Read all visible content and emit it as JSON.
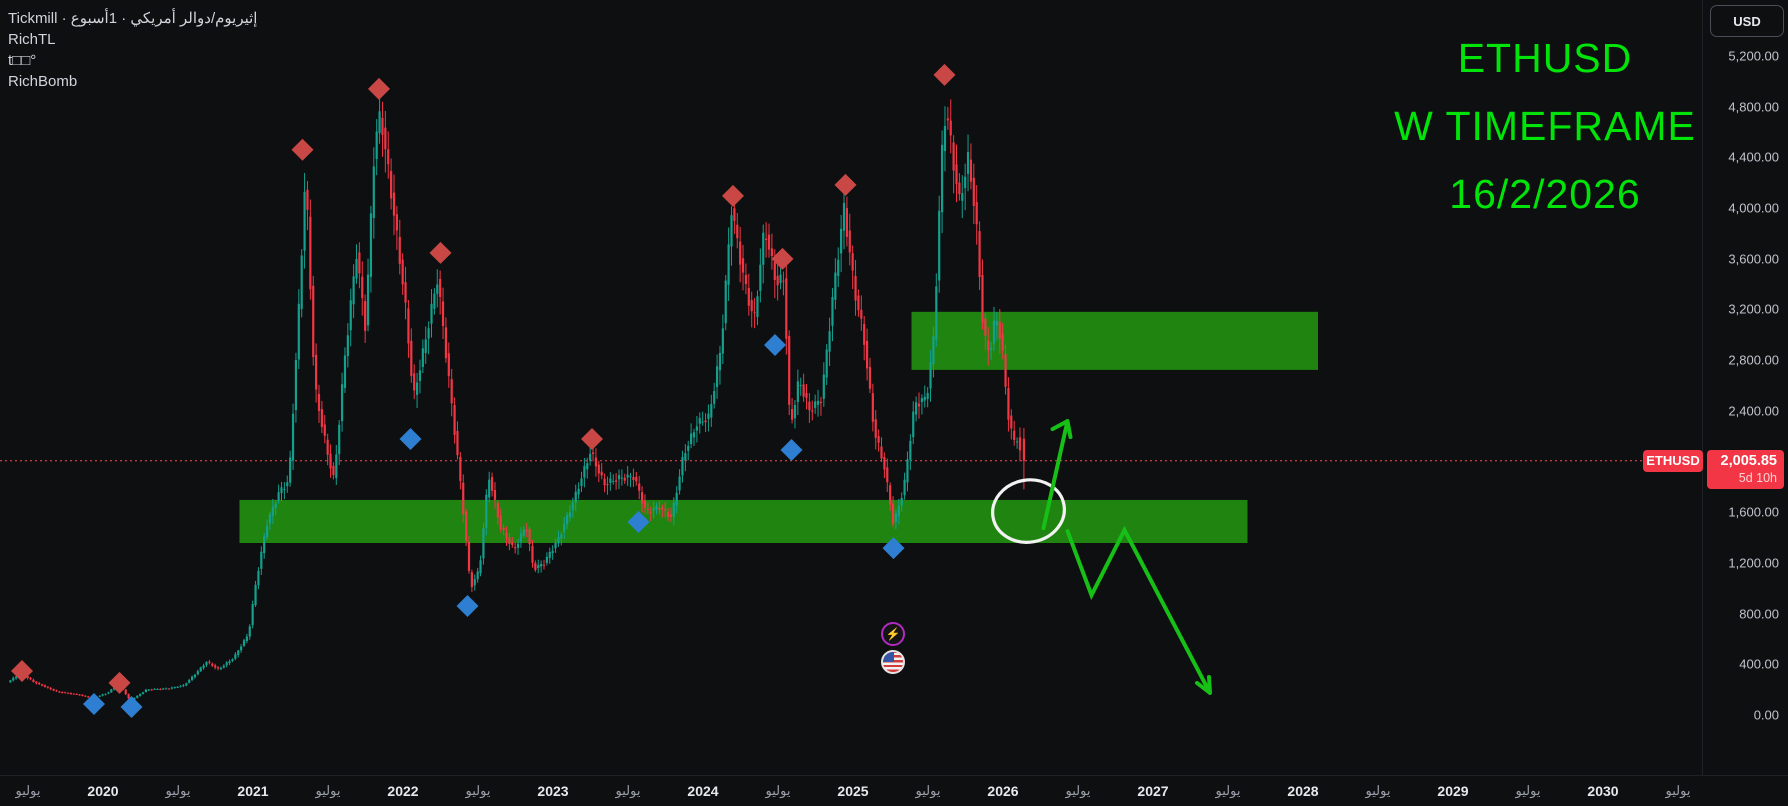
{
  "legend": {
    "line1": "Tickmill · عوبسأ1 · يكيرمأ رلاود/مويريثإ",
    "line2": "RichTL",
    "line3": "t□□°",
    "line4": "RichBomb"
  },
  "title_drawing": {
    "line1": "ETHUSD",
    "line2": "W TIMEFRAME",
    "line3": "16/2/2026",
    "color": "#00e40a"
  },
  "price_axis": {
    "currency_button": "USD",
    "ticks": [
      5200,
      4800,
      4400,
      4000,
      3600,
      3200,
      2800,
      2400,
      1600,
      1200,
      800,
      400,
      0
    ]
  },
  "time_axis": {
    "month_label": "يوليو",
    "years": [
      2020,
      2021,
      2022,
      2023,
      2024,
      2025,
      2026,
      2027,
      2028,
      2029,
      2030
    ]
  },
  "price_flag": {
    "symbol": "ETHUSD",
    "price": "2,005.85",
    "countdown": "5d 10h",
    "value": 2005.85
  },
  "event_icons": [
    {
      "name": "lightning-event",
      "glyph": "⚡"
    },
    {
      "name": "us-flag-event"
    }
  ],
  "colors": {
    "background": "#0e0f10",
    "candle_up": "#14a08e",
    "candle_down": "#f23645",
    "zone_green": "#1f8410",
    "sell_marker": "#c94846",
    "buy_marker": "#2e7fd1",
    "flag_red": "#f23645",
    "dotted_line": "#f54e56",
    "annotation_green": "#16c016",
    "circle_white": "#f2f2f2"
  },
  "chart_data": {
    "type": "candlestick",
    "symbol": "ETHUSD",
    "interval": "1W",
    "title": "ETHUSD W TIMEFRAME 16/2/2026",
    "last_price": 2005.85,
    "x_domain_years": [
      2019.37,
      2030.6
    ],
    "y_domain_price": [
      0,
      5450
    ],
    "price_path_anchors": [
      [
        2019.37,
        255
      ],
      [
        2019.46,
        330
      ],
      [
        2019.55,
        260
      ],
      [
        2019.7,
        185
      ],
      [
        2019.85,
        160
      ],
      [
        2019.94,
        130
      ],
      [
        2020.05,
        180
      ],
      [
        2020.11,
        260
      ],
      [
        2020.19,
        112
      ],
      [
        2020.3,
        200
      ],
      [
        2020.45,
        210
      ],
      [
        2020.55,
        235
      ],
      [
        2020.63,
        330
      ],
      [
        2020.7,
        420
      ],
      [
        2020.78,
        360
      ],
      [
        2020.88,
        450
      ],
      [
        2020.98,
        640
      ],
      [
        2021.03,
        1050
      ],
      [
        2021.1,
        1500
      ],
      [
        2021.18,
        1750
      ],
      [
        2021.25,
        1850
      ],
      [
        2021.32,
        3300
      ],
      [
        2021.36,
        4300
      ],
      [
        2021.42,
        2600
      ],
      [
        2021.5,
        2100
      ],
      [
        2021.55,
        1850
      ],
      [
        2021.62,
        2800
      ],
      [
        2021.7,
        3650
      ],
      [
        2021.76,
        3050
      ],
      [
        2021.82,
        4500
      ],
      [
        2021.86,
        4750
      ],
      [
        2021.95,
        3950
      ],
      [
        2022.02,
        3300
      ],
      [
        2022.08,
        2500
      ],
      [
        2022.15,
        2900
      ],
      [
        2022.24,
        3450
      ],
      [
        2022.32,
        2600
      ],
      [
        2022.4,
        1750
      ],
      [
        2022.46,
        1000
      ],
      [
        2022.52,
        1150
      ],
      [
        2022.58,
        1900
      ],
      [
        2022.66,
        1480
      ],
      [
        2022.75,
        1300
      ],
      [
        2022.83,
        1500
      ],
      [
        2022.88,
        1150
      ],
      [
        2022.95,
        1200
      ],
      [
        2023.05,
        1400
      ],
      [
        2023.15,
        1700
      ],
      [
        2023.26,
        2080
      ],
      [
        2023.35,
        1820
      ],
      [
        2023.45,
        1870
      ],
      [
        2023.55,
        1880
      ],
      [
        2023.63,
        1600
      ],
      [
        2023.72,
        1640
      ],
      [
        2023.8,
        1560
      ],
      [
        2023.88,
        2050
      ],
      [
        2023.97,
        2300
      ],
      [
        2024.05,
        2350
      ],
      [
        2024.13,
        2900
      ],
      [
        2024.2,
        4000
      ],
      [
        2024.28,
        3450
      ],
      [
        2024.35,
        3100
      ],
      [
        2024.42,
        3850
      ],
      [
        2024.5,
        3400
      ],
      [
        2024.55,
        3450
      ],
      [
        2024.59,
        2250
      ],
      [
        2024.65,
        2650
      ],
      [
        2024.72,
        2400
      ],
      [
        2024.8,
        2500
      ],
      [
        2024.88,
        3350
      ],
      [
        2024.95,
        4000
      ],
      [
        2025.02,
        3350
      ],
      [
        2025.08,
        3000
      ],
      [
        2025.15,
        2250
      ],
      [
        2025.22,
        1950
      ],
      [
        2025.28,
        1500
      ],
      [
        2025.35,
        1800
      ],
      [
        2025.42,
        2450
      ],
      [
        2025.5,
        2500
      ],
      [
        2025.55,
        3000
      ],
      [
        2025.6,
        4400
      ],
      [
        2025.63,
        4800
      ],
      [
        2025.68,
        4350
      ],
      [
        2025.72,
        4050
      ],
      [
        2025.78,
        4400
      ],
      [
        2025.83,
        3900
      ],
      [
        2025.88,
        3000
      ],
      [
        2025.92,
        2850
      ],
      [
        2025.96,
        3150
      ],
      [
        2026.0,
        2950
      ],
      [
        2026.04,
        2400
      ],
      [
        2026.08,
        2150
      ],
      [
        2026.11,
        2200
      ],
      [
        2026.13,
        2005.85
      ]
    ],
    "last_candle": {
      "t": 2026.13,
      "open": 2180,
      "close": 2005.85,
      "high": 2265,
      "low": 1780
    },
    "sell_signal_markers": [
      [
        2019.46,
        347
      ],
      [
        2020.11,
        253
      ],
      [
        2021.33,
        4460
      ],
      [
        2021.84,
        4940
      ],
      [
        2022.25,
        3646
      ],
      [
        2023.26,
        2178
      ],
      [
        2024.2,
        4096
      ],
      [
        2024.53,
        3599
      ],
      [
        2024.95,
        4183
      ],
      [
        2025.61,
        5051
      ]
    ],
    "buy_signal_markers": [
      [
        2019.94,
        87
      ],
      [
        2020.19,
        63
      ],
      [
        2022.05,
        2178
      ],
      [
        2022.43,
        860
      ],
      [
        2023.57,
        1523
      ],
      [
        2024.48,
        2919
      ],
      [
        2024.59,
        2091
      ],
      [
        2025.27,
        1317
      ]
    ],
    "zones": [
      {
        "name": "upper-green-zone",
        "t": [
          2025.39,
          2028.1
        ],
        "price": [
          2723,
          3181
        ]
      },
      {
        "name": "lower-green-zone",
        "t": [
          2020.91,
          2027.63
        ],
        "price": [
          1357,
          1697
        ]
      }
    ],
    "drawings": {
      "circle": {
        "t": 2026.17,
        "price": 1609,
        "rx_years": 0.24,
        "ry_price": 245
      },
      "arrow_up": {
        "from": [
          2026.27,
          1475
        ],
        "to": [
          2026.43,
          2319
        ]
      },
      "zigzag_arrow": {
        "points": [
          [
            2026.43,
            1451
          ],
          [
            2026.59,
            946
          ],
          [
            2026.81,
            1459
          ],
          [
            2027.38,
            174
          ]
        ]
      }
    }
  }
}
